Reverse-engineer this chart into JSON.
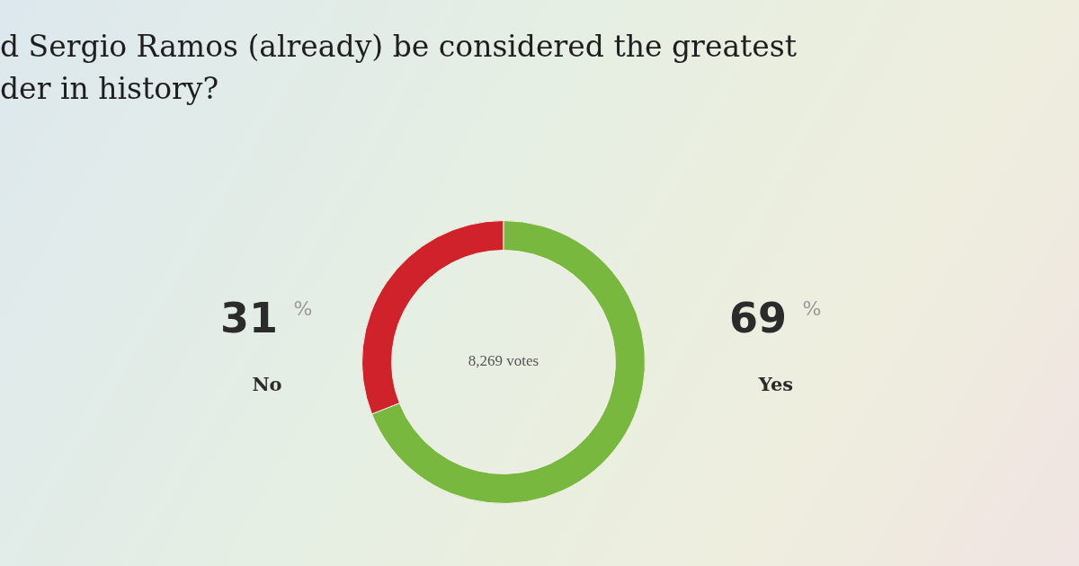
{
  "chart_data": {
    "type": "donut",
    "title": "d Sergio Ramos (already) be considered the greatest der in history?",
    "categories": [
      "No",
      "Yes"
    ],
    "values": [
      31,
      69
    ],
    "colors": [
      "#d0222a",
      "#79b83f"
    ],
    "annotations": [
      "8,269 votes"
    ],
    "value_labels": [
      "31 %",
      "69 %"
    ],
    "legend": false
  }
}
